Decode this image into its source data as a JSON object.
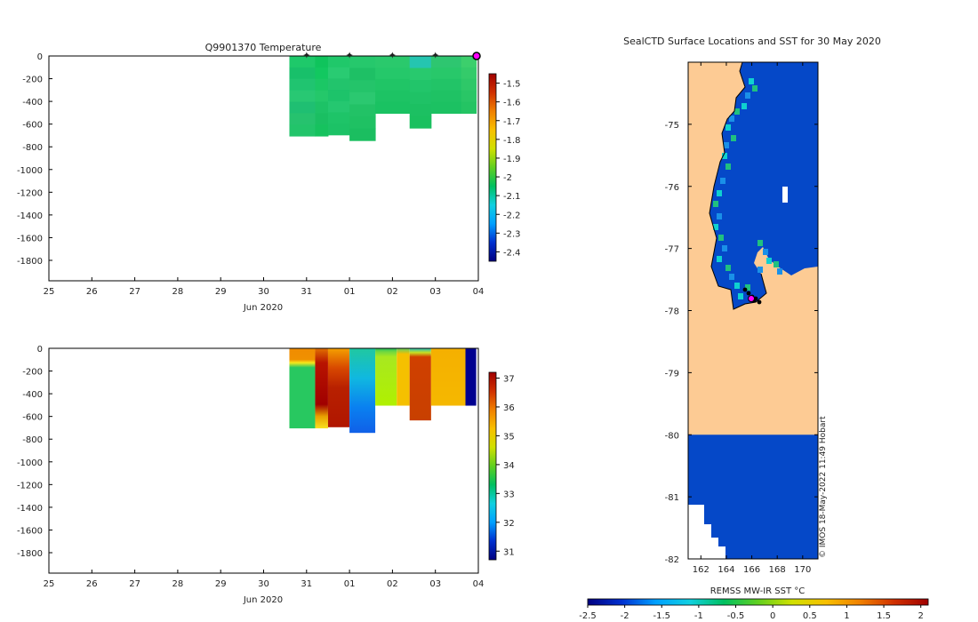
{
  "chart_data": [
    {
      "type": "heatmap",
      "id": "temperature",
      "title": "Q9901370  Temperature",
      "xlabel": "Jun 2020",
      "x_tick_labels": [
        "25",
        "26",
        "27",
        "28",
        "29",
        "30",
        "31",
        "01",
        "02",
        "03",
        "04"
      ],
      "x_range_days": [
        25,
        35
      ],
      "y_tick_labels": [
        "0",
        "-200",
        "-400",
        "-600",
        "-800",
        "-1000",
        "-1200",
        "-1400",
        "-1600",
        "-1800"
      ],
      "y_range": [
        -1980,
        0
      ],
      "surface_marker_days": [
        31,
        32,
        33,
        34
      ],
      "last_profile_day": 35,
      "profiles": [
        {
          "x0": 30.6,
          "x1": 31.2,
          "depth": -705,
          "colors": [
            "#1ec96a",
            "#18c06a",
            "#20c470",
            "#28c873",
            "#1fbf72",
            "#26c26e",
            "#22c46a"
          ]
        },
        {
          "x0": 31.2,
          "x1": 31.5,
          "depth": -705,
          "colors": [
            "#0fc45c",
            "#12c860",
            "#1bc765",
            "#24c86a",
            "#1dc266",
            "#1abf62",
            "#16c25e"
          ]
        },
        {
          "x0": 31.5,
          "x1": 32.0,
          "depth": -695,
          "colors": [
            "#20c86a",
            "#29cb72",
            "#22c46c",
            "#1dc36a",
            "#25c770",
            "#1ec468",
            "#1cc266"
          ]
        },
        {
          "x0": 32.0,
          "x1": 32.6,
          "depth": -745,
          "colors": [
            "#26c86c",
            "#1ec065",
            "#24c46a",
            "#2bc870",
            "#22c266",
            "#1fc163",
            "#1bbe60"
          ]
        },
        {
          "x0": 32.6,
          "x1": 33.4,
          "depth": -505,
          "colors": [
            "#2ac96c",
            "#25c86a",
            "#20c566",
            "#1dc364",
            "#1ac262"
          ]
        },
        {
          "x0": 33.4,
          "x1": 33.9,
          "depth": -635,
          "colors": [
            "#25c5b0",
            "#28c96e",
            "#22c56a",
            "#1fc266",
            "#1cc062",
            "#1ac05f"
          ]
        },
        {
          "x0": 33.9,
          "x1": 34.6,
          "depth": -505,
          "colors": [
            "#2ec670",
            "#28c86a",
            "#22c467",
            "#1fc264",
            "#1cc162"
          ]
        },
        {
          "x0": 34.6,
          "x1": 34.95,
          "depth": -505,
          "colors": [
            "#3ccf6c",
            "#34cb6a",
            "#2ec868",
            "#29c666",
            "#24c463"
          ]
        }
      ],
      "colorbar": {
        "tick_labels": [
          "-1.5",
          "-1.6",
          "-1.7",
          "-1.8",
          "-1.9",
          "-2",
          "-2.1",
          "-2.2",
          "-2.3",
          "-2.4"
        ],
        "range": [
          -2.45,
          -1.45
        ]
      }
    },
    {
      "type": "heatmap",
      "id": "salinity",
      "title": "",
      "xlabel": "Jun 2020",
      "x_tick_labels": [
        "25",
        "26",
        "27",
        "28",
        "29",
        "30",
        "31",
        "01",
        "02",
        "03",
        "04"
      ],
      "x_range_days": [
        25,
        35
      ],
      "y_tick_labels": [
        "0",
        "-200",
        "-400",
        "-600",
        "-800",
        "-1000",
        "-1200",
        "-1400",
        "-1600",
        "-1800"
      ],
      "y_range": [
        -1980,
        0
      ],
      "profiles": [
        {
          "x0": 30.6,
          "x1": 31.2,
          "depth": -705,
          "stops": [
            [
              0,
              "#f08c00"
            ],
            [
              0.14,
              "#f09000"
            ],
            [
              0.18,
              "#f7e81a"
            ],
            [
              0.24,
              "#28c860"
            ],
            [
              1,
              "#28c860"
            ]
          ]
        },
        {
          "x0": 31.2,
          "x1": 31.5,
          "depth": -705,
          "stops": [
            [
              0,
              "#e07000"
            ],
            [
              0.18,
              "#b81400"
            ],
            [
              0.7,
              "#a00000"
            ],
            [
              0.85,
              "#e8a000"
            ],
            [
              1,
              "#f8e020"
            ]
          ]
        },
        {
          "x0": 31.5,
          "x1": 32.0,
          "depth": -695,
          "stops": [
            [
              0,
              "#f5a000"
            ],
            [
              0.25,
              "#d84800"
            ],
            [
              0.5,
              "#b82000"
            ],
            [
              1,
              "#b01600"
            ]
          ]
        },
        {
          "x0": 32.0,
          "x1": 32.6,
          "depth": -745,
          "stops": [
            [
              0,
              "#20c8a0"
            ],
            [
              0.35,
              "#10b8e0"
            ],
            [
              0.7,
              "#0a80f0"
            ],
            [
              1,
              "#1060e8"
            ]
          ]
        },
        {
          "x0": 32.6,
          "x1": 33.1,
          "depth": -505,
          "stops": [
            [
              0,
              "#20c060"
            ],
            [
              0.06,
              "#70d840"
            ],
            [
              0.15,
              "#a8e820"
            ],
            [
              1,
              "#b0f000"
            ]
          ]
        },
        {
          "x0": 33.1,
          "x1": 33.4,
          "depth": -505,
          "stops": [
            [
              0,
              "#60d060"
            ],
            [
              0.1,
              "#f5c000"
            ],
            [
              1,
              "#f5c000"
            ]
          ]
        },
        {
          "x0": 33.4,
          "x1": 33.9,
          "depth": -635,
          "stops": [
            [
              0,
              "#20c0c0"
            ],
            [
              0.06,
              "#c8e020"
            ],
            [
              0.12,
              "#d04000"
            ],
            [
              1,
              "#c84000"
            ]
          ]
        },
        {
          "x0": 33.9,
          "x1": 34.7,
          "depth": -505,
          "stops": [
            [
              0,
              "#f5b000"
            ],
            [
              1,
              "#f5b800"
            ]
          ]
        },
        {
          "x0": 34.7,
          "x1": 34.95,
          "depth": -505,
          "stops": [
            [
              0,
              "#000090"
            ],
            [
              1,
              "#000090"
            ]
          ]
        }
      ],
      "colorbar": {
        "tick_labels": [
          "37",
          "36",
          "35",
          "34",
          "33",
          "32",
          "31"
        ],
        "range": [
          30.7,
          37.2
        ]
      }
    },
    {
      "type": "heatmap",
      "id": "sst-map",
      "title": "SealCTD Surface Locations and SST for 30 May 2020",
      "x_tick_labels": [
        "162",
        "164",
        "166",
        "168",
        "170"
      ],
      "x_range": [
        161.0,
        171.2
      ],
      "y_tick_labels": [
        "-75",
        "-76",
        "-77",
        "-78",
        "-79",
        "-80",
        "-81",
        "-82"
      ],
      "y_range": [
        -82.0,
        -74.0
      ],
      "colorbar_label": "REMSS MW-IR SST °C",
      "colorbar_tick_labels": [
        "-2.5",
        "-2",
        "-1.5",
        "-1",
        "-0.5",
        "0",
        "0.5",
        "1",
        "1.5",
        "2"
      ],
      "colorbar_range": [
        -2.5,
        2.1
      ],
      "credit": "© IMOS 18-May-2022 11:49 Hobart",
      "colors": {
        "land": "#fdcb94",
        "sea": "#0548c8",
        "coast_cells": [
          "#0fd0d0",
          "#20c080",
          "#1a90e8"
        ],
        "track": "#000000",
        "marker": "#ff00ff"
      }
    }
  ]
}
